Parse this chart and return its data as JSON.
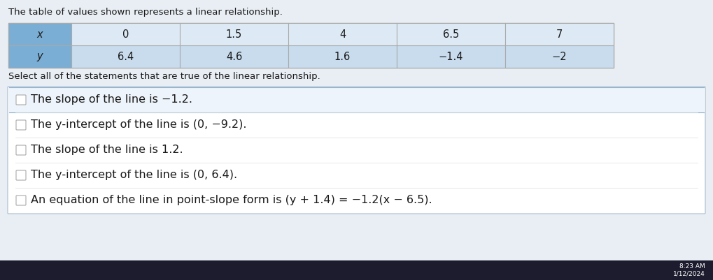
{
  "title_text": "The table of values shown represents a linear relationship.",
  "subtitle_text": "Select all of the statements that are true of the linear relationship.",
  "table_x_label": "x",
  "table_y_label": "y",
  "table_x_values": [
    "0",
    "1.5",
    "4",
    "6.5",
    "7"
  ],
  "table_y_values": [
    "6.4",
    "4.6",
    "1.6",
    "−1.4",
    "−2"
  ],
  "header_bg": "#7BAED4",
  "row_bg_x": "#DDEAF5",
  "row_bg_y": "#C8DCEE",
  "table_border": "#AAAAAA",
  "statements": [
    {
      "text": "The slope of the line is −1.2.",
      "selected": true
    },
    {
      "text": "The y-intercept of the line is (0, −9.2).",
      "selected": false
    },
    {
      "text": "The slope of the line is 1.2.",
      "selected": false
    },
    {
      "text": "The y-intercept of the line is (0, 6.4).",
      "selected": false
    },
    {
      "text": "An equation of the line in point-slope form is (y + 1.4) = −1.2(x − 6.5).",
      "selected": false
    }
  ],
  "selected_box_color": "#EEF4FB",
  "selected_box_border": "#8AAECE",
  "bg_color": "#D8DFE8",
  "content_bg": "#E8EEF4",
  "white": "#FFFFFF",
  "text_color": "#1A1A1A",
  "font_size_title": 9.5,
  "font_size_table": 10.5,
  "font_size_statement": 11.5,
  "taskbar_color": "#1C1C2E",
  "time_text": "8:23 AM",
  "date_text": "1/12/2024"
}
